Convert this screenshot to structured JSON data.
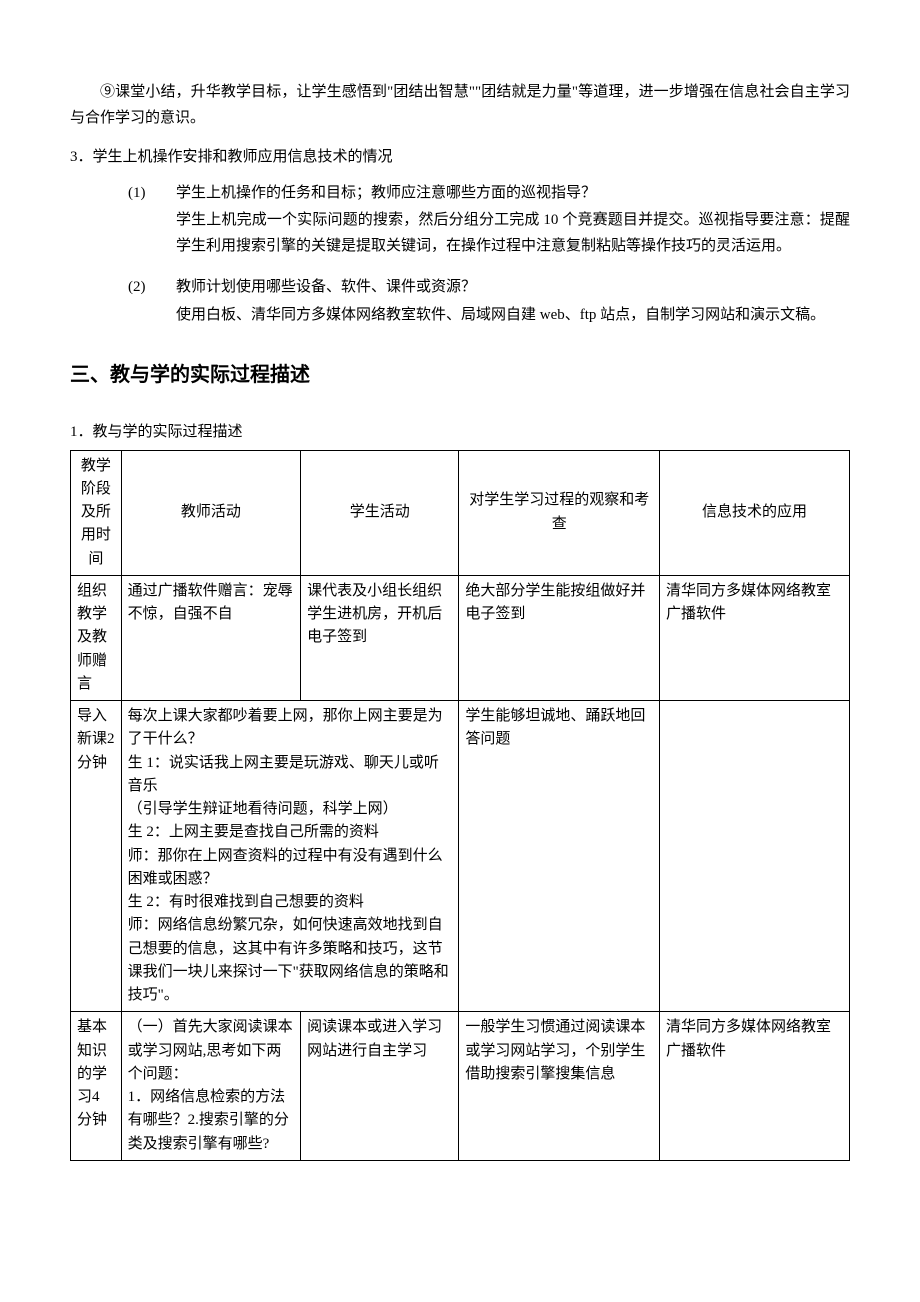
{
  "intro": {
    "p1": "⑨课堂小结，升华教学目标，让学生感悟到\"团结出智慧\"\"团结就是力量\"等道理，进一步增强在信息社会自主学习与合作学习的意识。"
  },
  "sec3": {
    "num_title": "3．学生上机操作安排和教师应用信息技术的情况",
    "items": [
      {
        "marker": "(1)",
        "q": "学生上机操作的任务和目标；教师应注意哪些方面的巡视指导？",
        "a": "学生上机完成一个实际问题的搜索，然后分组分工完成 10 个竞赛题目并提交。巡视指导要注意：提醒学生利用搜索引擎的关键是提取关键词，在操作过程中注意复制粘贴等操作技巧的灵活运用。"
      },
      {
        "marker": "(2)",
        "q": "教师计划使用哪些设备、软件、课件或资源？",
        "a": "使用白板、清华同方多媒体网络教室软件、局域网自建 web、ftp 站点，自制学习网站和演示文稿。"
      }
    ]
  },
  "section_title": "三、教与学的实际过程描述",
  "table_label": "1．教与学的实际过程描述",
  "table": {
    "headers": [
      "教学阶段及所用时间",
      "教师活动",
      "学生活动",
      "对学生学习过程的观察和考查",
      "信息技术的应用"
    ],
    "rows": [
      {
        "stage": "组织教学及教师赠言",
        "teacher": "通过广播软件赠言：宠辱不惊，自强不自",
        "student": "课代表及小组长组织学生进机房，开机后电子签到",
        "observe": "绝大部分学生能按组做好并电子签到",
        "tech": "清华同方多媒体网络教室广播软件"
      },
      {
        "stage": "导入新课2 分钟",
        "merged": "每次上课大家都吵着要上网，那你上网主要是为了干什么？\n生 1：说实话我上网主要是玩游戏、聊天儿或听音乐\n（引导学生辩证地看待问题，科学上网）\n生 2：上网主要是查找自己所需的资料\n师：那你在上网查资料的过程中有没有遇到什么困难或困惑？\n生 2：有时很难找到自己想要的资料\n师：网络信息纷繁冗杂，如何快速高效地找到自己想要的信息，这其中有许多策略和技巧，这节课我们一块儿来探讨一下\"获取网络信息的策略和技巧\"。",
        "observe": "学生能够坦诚地、踊跃地回答问题",
        "tech": ""
      },
      {
        "stage": "基本知识的学习4 分钟",
        "teacher": "（一）首先大家阅读课本或学习网站,思考如下两个问题：\n1．网络信息检索的方法有哪些？2.搜索引擎的分类及搜索引擎有哪些?",
        "student": "阅读课本或进入学习网站进行自主学习",
        "observe": "一般学生习惯通过阅读课本或学习网站学习，个别学生借助搜索引擎搜集信息",
        "tech": "清华同方多媒体网络教室广播软件"
      }
    ]
  }
}
